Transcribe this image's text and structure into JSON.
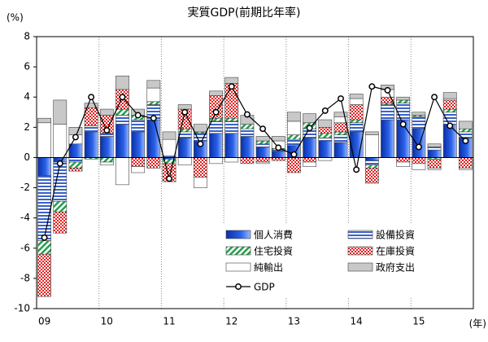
{
  "chart_data": {
    "type": "stacked-bar-line",
    "title": "実質GDP(前期比年率)",
    "y_unit": "(%)",
    "x_unit": "(年)",
    "categories": [
      "09",
      null,
      null,
      null,
      "10",
      null,
      null,
      null,
      "11",
      null,
      null,
      null,
      "12",
      null,
      null,
      null,
      "13",
      null,
      null,
      null,
      "14",
      null,
      null,
      null,
      "15",
      null,
      null,
      null
    ],
    "ylim": [
      -10,
      8
    ],
    "yticks": [
      -10,
      -8,
      -6,
      -4,
      -2,
      0,
      2,
      4,
      6,
      8
    ],
    "series": [
      {
        "name": "個人消費",
        "color": "#1f4fd8",
        "values": [
          -1.2,
          -0.3,
          0.9,
          1.7,
          1.4,
          2.2,
          1.7,
          2.5,
          -0.1,
          1.3,
          1.1,
          1.6,
          1.6,
          1.4,
          0.7,
          0.4,
          0.8,
          1.3,
          1.1,
          1.0,
          1.7,
          -0.2,
          2.5,
          2.5,
          1.9,
          0.5,
          2.2,
          1.3
        ]
      },
      {
        "name": "設備投資",
        "color": "#3a62c8",
        "values": [
          -4.3,
          -2.6,
          -0.3,
          0.4,
          0.2,
          0.6,
          0.8,
          1.0,
          0.1,
          0.4,
          0.5,
          0.8,
          0.8,
          0.5,
          0.2,
          0.1,
          0.4,
          0.6,
          0.2,
          0.5,
          0.6,
          -0.3,
          1.0,
          1.1,
          0.8,
          0.2,
          0.8,
          0.4
        ]
      },
      {
        "name": "住宅投資",
        "color": "#22a04a",
        "values": [
          -0.9,
          -0.7,
          -0.4,
          -0.1,
          -0.3,
          0.4,
          0.3,
          0.2,
          -0.3,
          0.2,
          0.1,
          0.2,
          0.2,
          0.3,
          0.2,
          0.1,
          0.3,
          0.4,
          0.3,
          0.2,
          0.2,
          -0.2,
          0.1,
          0.2,
          0.1,
          -0.1,
          0.2,
          0.2
        ]
      },
      {
        "name": "在庫投資",
        "color": "#e02020",
        "values": [
          -2.8,
          -1.4,
          -0.2,
          1.2,
          1.2,
          1.3,
          -0.6,
          -0.7,
          -1.2,
          1.3,
          -1.3,
          1.5,
          2.3,
          -0.4,
          -0.3,
          -0.2,
          -1.0,
          -0.3,
          0.4,
          0.6,
          1.0,
          -1.0,
          0.4,
          -0.3,
          -0.4,
          -0.6,
          0.6,
          -0.7
        ]
      },
      {
        "name": "純輸出",
        "color": "#ffffff",
        "values": [
          2.3,
          2.2,
          0.6,
          0.0,
          -0.2,
          -1.8,
          -0.4,
          0.9,
          1.1,
          -0.5,
          -0.7,
          -0.4,
          -0.3,
          0.0,
          -0.1,
          0.5,
          0.9,
          -0.3,
          -0.2,
          0.4,
          0.4,
          1.5,
          0.5,
          -0.3,
          -0.4,
          -0.1,
          0.1,
          -0.1
        ]
      },
      {
        "name": "政府支出",
        "color": "#c8c8c8",
        "values": [
          0.3,
          1.6,
          0.5,
          0.3,
          0.4,
          0.9,
          0.4,
          0.5,
          0.5,
          0.3,
          0.5,
          0.3,
          0.4,
          0.6,
          0.3,
          0.3,
          0.6,
          0.6,
          0.5,
          0.3,
          0.3,
          0.2,
          0.3,
          0.2,
          0.2,
          0.2,
          0.4,
          0.5
        ]
      }
    ],
    "line": {
      "name": "GDP",
      "color": "#000000",
      "values": [
        -5.3,
        -0.4,
        1.35,
        4.0,
        1.8,
        4.0,
        2.8,
        2.6,
        -1.4,
        3.0,
        0.9,
        3.0,
        4.7,
        2.85,
        1.9,
        0.65,
        0.2,
        1.95,
        3.1,
        3.9,
        -0.8,
        4.7,
        4.45,
        2.2,
        0.7,
        4.0,
        2.1,
        1.1
      ]
    }
  }
}
